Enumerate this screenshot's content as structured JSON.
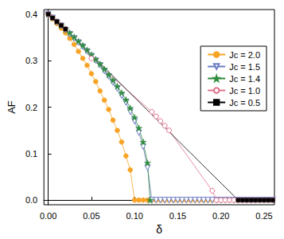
{
  "chart_data": {
    "type": "line",
    "x_label": "δ",
    "y_label": "AF",
    "xlim": [
      -0.005,
      0.262
    ],
    "ylim": [
      -0.01,
      0.41
    ],
    "xticks": [
      {
        "value": 0,
        "label": "0.00"
      },
      {
        "value": 0.05,
        "label": "0.05"
      },
      {
        "value": 0.1,
        "label": "0.10"
      },
      {
        "value": 0.15,
        "label": "0.15"
      },
      {
        "value": 0.2,
        "label": "0.20"
      },
      {
        "value": 0.25,
        "label": "0.25"
      }
    ],
    "yticks": [
      {
        "value": 0,
        "label": "0.0"
      },
      {
        "value": 0.1,
        "label": "0.1"
      },
      {
        "value": 0.2,
        "label": "0.2"
      },
      {
        "value": 0.3,
        "label": "0.3"
      },
      {
        "value": 0.4,
        "label": "0.4"
      }
    ],
    "grid": false,
    "legend": "upper right",
    "series": [
      {
        "name": "Jc = 2.0",
        "color": "#f7a325",
        "marker": "circle",
        "x": [
          0,
          0.005,
          0.01,
          0.015,
          0.02,
          0.025,
          0.03,
          0.035,
          0.04,
          0.045,
          0.05,
          0.055,
          0.06,
          0.065,
          0.07,
          0.075,
          0.08,
          0.085,
          0.09,
          0.095,
          0.1,
          0.105,
          0.11,
          0.115,
          0.12,
          0.125,
          0.13,
          0.135,
          0.14,
          0.145,
          0.15,
          0.155,
          0.16,
          0.165,
          0.17,
          0.175,
          0.18,
          0.185,
          0.19,
          0.195,
          0.2,
          0.205,
          0.21,
          0.215,
          0.22,
          0.225,
          0.23,
          0.235,
          0.24,
          0.245,
          0.25,
          0.255,
          0.26
        ],
        "values": [
          0.4,
          0.39,
          0.38,
          0.37,
          0.36,
          0.348,
          0.335,
          0.32,
          0.305,
          0.29,
          0.272,
          0.255,
          0.235,
          0.215,
          0.195,
          0.172,
          0.15,
          0.125,
          0.095,
          0.065,
          0.0,
          0,
          0,
          0,
          0,
          0,
          0,
          0,
          0,
          0,
          0,
          0,
          0,
          0,
          0,
          0,
          0,
          0,
          0,
          0,
          0,
          0,
          0,
          0,
          0,
          0,
          0,
          0,
          0,
          0,
          0,
          0,
          0
        ]
      },
      {
        "name": "Jc = 1.5",
        "color": "#6b7bc4",
        "marker": "open_triangle_down",
        "x": [
          0,
          0.005,
          0.01,
          0.015,
          0.02,
          0.025,
          0.03,
          0.035,
          0.04,
          0.045,
          0.05,
          0.055,
          0.06,
          0.065,
          0.07,
          0.075,
          0.08,
          0.085,
          0.09,
          0.095,
          0.1,
          0.105,
          0.11,
          0.115,
          0.12,
          0.125,
          0.13,
          0.135,
          0.14,
          0.145,
          0.15,
          0.155,
          0.16,
          0.165,
          0.17,
          0.175,
          0.18,
          0.185,
          0.19,
          0.195,
          0.2,
          0.205,
          0.21,
          0.215,
          0.22,
          0.225,
          0.23,
          0.235,
          0.24,
          0.245,
          0.25,
          0.255,
          0.26
        ],
        "values": [
          0.4,
          0.392,
          0.383,
          0.375,
          0.366,
          0.357,
          0.348,
          0.339,
          0.33,
          0.32,
          0.31,
          0.3,
          0.29,
          0.278,
          0.266,
          0.253,
          0.24,
          0.225,
          0.21,
          0.19,
          0.17,
          0.145,
          0.115,
          0.07,
          0.0,
          0,
          0,
          0,
          0,
          0,
          0,
          0,
          0,
          0,
          0,
          0,
          0,
          0,
          0,
          0,
          0,
          0,
          0,
          0,
          0,
          0,
          0,
          0,
          0,
          0,
          0,
          0,
          0
        ]
      },
      {
        "name": "Jc = 1.4",
        "color": "#2e8b3c",
        "marker": "star",
        "x": [
          0,
          0.005,
          0.01,
          0.015,
          0.02,
          0.025,
          0.03,
          0.035,
          0.04,
          0.045,
          0.05,
          0.055,
          0.06,
          0.065,
          0.07,
          0.075,
          0.08,
          0.085,
          0.09,
          0.095,
          0.1,
          0.105,
          0.11,
          0.115,
          0.118
        ],
        "values": [
          0.4,
          0.392,
          0.384,
          0.376,
          0.368,
          0.36,
          0.351,
          0.342,
          0.333,
          0.323,
          0.313,
          0.303,
          0.293,
          0.282,
          0.27,
          0.258,
          0.245,
          0.231,
          0.216,
          0.198,
          0.178,
          0.155,
          0.125,
          0.08,
          0.0
        ]
      },
      {
        "name": "Jc = 1.0",
        "color": "#e0708a",
        "marker": "open_circle",
        "x": [
          0,
          0.005,
          0.01,
          0.015,
          0.02,
          0.05,
          0.12,
          0.125,
          0.13,
          0.135,
          0.14,
          0.19,
          0.195,
          0.2,
          0.205,
          0.21,
          0.215,
          0.22,
          0.225,
          0.23,
          0.235,
          0.24,
          0.245,
          0.25,
          0.255,
          0.26
        ],
        "values": [
          0.4,
          0.392,
          0.384,
          0.376,
          0.368,
          0.305,
          0.19,
          0.18,
          0.17,
          0.16,
          0.15,
          0.02,
          0.0,
          0,
          0,
          0,
          0,
          0,
          0,
          0,
          0,
          0,
          0,
          0,
          0,
          0
        ]
      },
      {
        "name": "Jc = 0.5",
        "color": "#000000",
        "marker": "square",
        "x": [
          0,
          0.005,
          0.01,
          0.015,
          0.02,
          0.22,
          0.225,
          0.23,
          0.235,
          0.24,
          0.245,
          0.25,
          0.255,
          0.26
        ],
        "values": [
          0.4,
          0.392,
          0.384,
          0.376,
          0.368,
          0.0,
          0,
          0,
          0,
          0,
          0,
          0,
          0,
          0
        ]
      }
    ]
  }
}
